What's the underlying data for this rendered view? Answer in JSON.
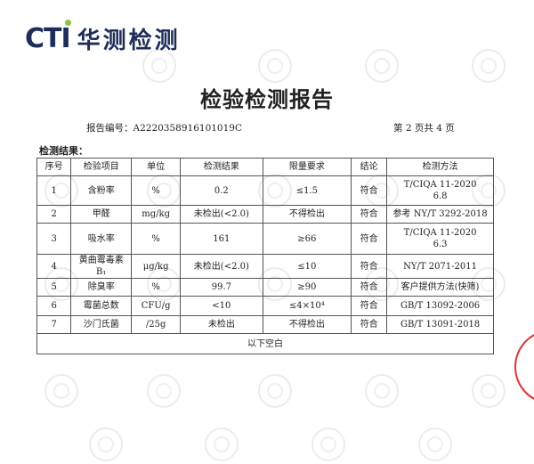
{
  "logo": {
    "brand": "CTI",
    "name": "华测检测"
  },
  "title": "检验检测报告",
  "report_no": "报告编号：A2220358916101019C",
  "page_info": "第 2 页共 4 页",
  "section": "检测结果：",
  "table": {
    "headers": [
      "序号",
      "检验项目",
      "单位",
      "检测结果",
      "限量要求",
      "结论",
      "检测方法"
    ],
    "rows": [
      [
        "1",
        "含粉率",
        "%",
        "0.2",
        "≤1.5",
        "符合",
        "T/CIQA 11-2020\n6.8"
      ],
      [
        "2",
        "甲醛",
        "mg/kg",
        "未检出(<2.0)",
        "不得检出",
        "符合",
        "参考 NY/T 3292-2018"
      ],
      [
        "3",
        "吸水率",
        "%",
        "161",
        "≥66",
        "符合",
        "T/CIQA 11-2020\n6.3"
      ],
      [
        "4",
        "黄曲霉毒素 B₁",
        "μg/kg",
        "未检出(<2.0)",
        "≤10",
        "符合",
        "NY/T 2071-2011"
      ],
      [
        "5",
        "除臭率",
        "%",
        "99.7",
        "≥90",
        "符合",
        "客户提供方法(快筛)"
      ],
      [
        "6",
        "霉菌总数",
        "CFU/g",
        "<10",
        "≤4×10⁴",
        "符合",
        "GB/T 13092-2006"
      ],
      [
        "7",
        "沙门氏菌",
        "/25g",
        "未检出",
        "不得检出",
        "符合",
        "GB/T 13091-2018"
      ]
    ],
    "footer": "以下空白"
  },
  "colors": {
    "brand": "#1f2d5a",
    "accent": "#8cc63f",
    "seal": "#d33333"
  }
}
